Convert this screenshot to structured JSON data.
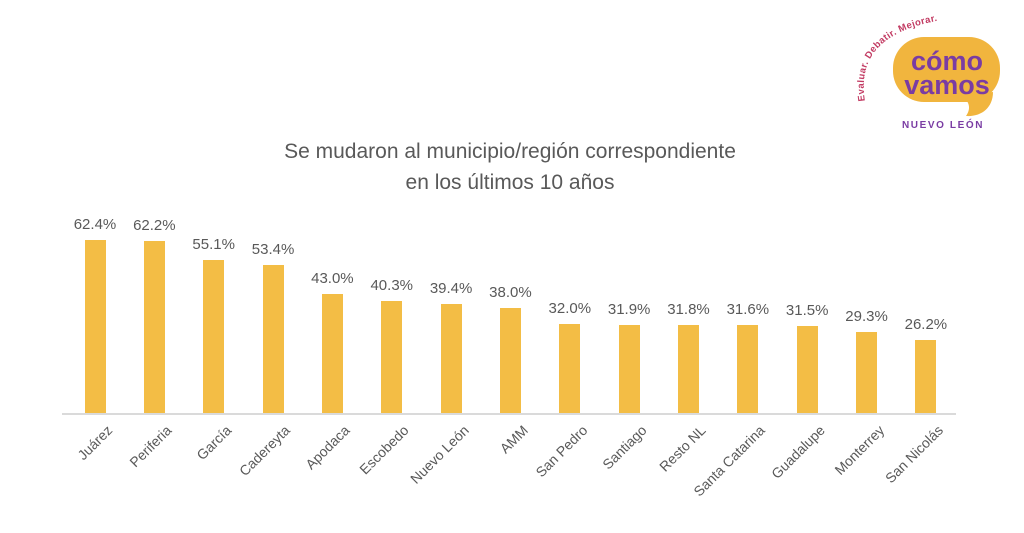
{
  "logo": {
    "tagline": "Evaluar. Debatir. Mejorar.",
    "wordmark_line1": "cómo",
    "wordmark_line2": "vamos",
    "region": "NUEVO LEÓN",
    "bubble_color": "#F1B53E",
    "wordmark_color": "#7A3CA3",
    "tagline_color": "#C23A62"
  },
  "chart_data": {
    "type": "bar",
    "title": "Se mudaron al municipio/región correspondiente en los últimos 10 años",
    "title_lines": [
      "Se mudaron al municipio/región correspondiente",
      "en los últimos 10 años"
    ],
    "categories": [
      "Juárez",
      "Periferia",
      "García",
      "Cadereyta",
      "Apodaca",
      "Escobedo",
      "Nuevo León",
      "AMM",
      "San Pedro",
      "Santiago",
      "Resto NL",
      "Santa Catarina",
      "Guadalupe",
      "Monterrey",
      "San Nicolás"
    ],
    "values": [
      62.4,
      62.2,
      55.1,
      53.4,
      43.0,
      40.3,
      39.4,
      38.0,
      32.0,
      31.9,
      31.8,
      31.6,
      31.5,
      29.3,
      26.2
    ],
    "value_labels": [
      "62.4%",
      "62.2%",
      "55.1%",
      "53.4%",
      "43.0%",
      "40.3%",
      "39.4%",
      "38.0%",
      "32.0%",
      "31.9%",
      "31.8%",
      "31.6%",
      "31.5%",
      "29.3%",
      "26.2%"
    ],
    "xlabel": "",
    "ylabel": "",
    "ylim": [
      0,
      70
    ],
    "grid": false,
    "legend": false,
    "bar_color": "#F3BD45",
    "label_color": "#595959",
    "axis_color": "#DADADA"
  }
}
